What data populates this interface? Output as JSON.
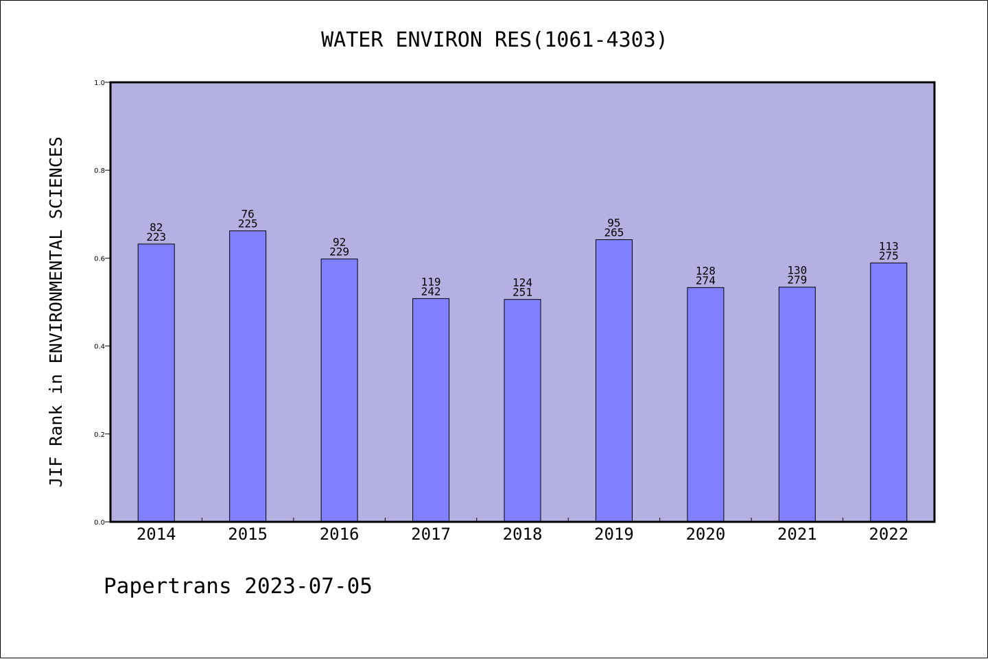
{
  "chart_data": {
    "type": "bar",
    "title": "WATER ENVIRON RES(1061-4303)",
    "xlabel": "",
    "ylabel": "JIF Rank in ENVIRONMENTAL SCIENCES",
    "ylim": [
      0.0,
      1.0
    ],
    "yticks": [
      "0.0",
      "0.2",
      "0.4",
      "0.6",
      "0.8",
      "1.0"
    ],
    "categories": [
      "2014",
      "2015",
      "2016",
      "2017",
      "2018",
      "2019",
      "2020",
      "2021",
      "2022"
    ],
    "values": [
      0.632,
      0.662,
      0.598,
      0.508,
      0.506,
      0.642,
      0.533,
      0.534,
      0.589
    ],
    "rank": [
      "82",
      "76",
      "92",
      "119",
      "124",
      "95",
      "128",
      "130",
      "113"
    ],
    "total": [
      "223",
      "225",
      "229",
      "242",
      "251",
      "265",
      "274",
      "279",
      "275"
    ],
    "grid": false,
    "colors": {
      "plot_background": "#b5b0e2",
      "bar_fill": "#8080ff",
      "bar_stroke": "#000000",
      "axis": "#000000"
    }
  },
  "footer": {
    "text": "Papertrans 2023-07-05"
  }
}
